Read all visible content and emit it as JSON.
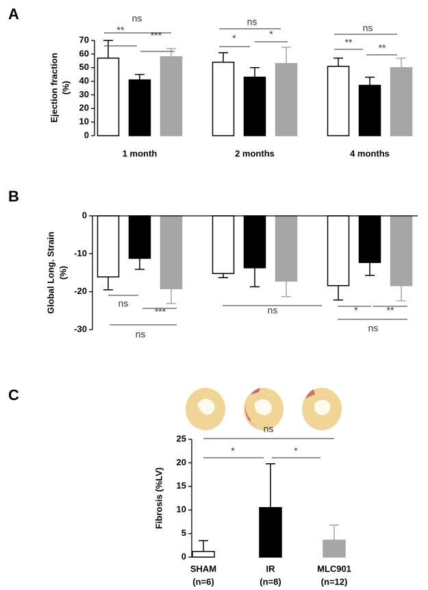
{
  "chart_data": [
    {
      "type": "bar",
      "panel_label": "A",
      "ylabel": [
        "Ejection fraction",
        "(%)"
      ],
      "categories": [
        "1 month",
        "2 months",
        "4 months"
      ],
      "series": [
        {
          "color": "#ffffff",
          "values": [
            57,
            54,
            51
          ],
          "errors": [
            13,
            7,
            6
          ]
        },
        {
          "color": "#000000",
          "values": [
            41,
            43,
            37
          ],
          "errors": [
            4,
            7,
            6
          ]
        },
        {
          "color": "#a6a6a6",
          "values": [
            58,
            53,
            50
          ],
          "errors": [
            6,
            12,
            7
          ]
        }
      ],
      "ylim": [
        0,
        70
      ],
      "yticks": [
        0,
        10,
        20,
        30,
        40,
        50,
        60,
        70
      ],
      "annotations": [
        "ns",
        "**",
        "***",
        "ns",
        "*",
        "*",
        "ns",
        "**",
        "**"
      ]
    },
    {
      "type": "bar",
      "panel_label": "B",
      "ylabel": [
        "Global Long. Strain",
        "(%)"
      ],
      "categories": [
        null,
        null,
        null
      ],
      "series": [
        {
          "color": "#ffffff",
          "values": [
            -16.1,
            -15.2,
            -18.4
          ],
          "errors": [
            3.4,
            1.1,
            3.8
          ]
        },
        {
          "color": "#000000",
          "values": [
            -11.2,
            -13.7,
            -12.3
          ],
          "errors": [
            2.9,
            5,
            3.4
          ]
        },
        {
          "color": "#a6a6a6",
          "values": [
            -19.2,
            -17.2,
            -18.4
          ],
          "errors": [
            3.9,
            4.1,
            4
          ]
        }
      ],
      "ylim": [
        -30,
        0
      ],
      "yticks": [
        -30,
        -20,
        -10,
        0
      ],
      "annotations": [
        "ns",
        "***",
        "ns",
        "ns",
        "*",
        "**",
        "ns"
      ]
    },
    {
      "type": "bar",
      "panel_label": "C",
      "ylabel": [
        "Fibrosis (%LV)"
      ],
      "categories": [
        "SHAM",
        "IR",
        "MLC901"
      ],
      "category_notes": [
        "(n=6)",
        "(n=8)",
        "(n=12)"
      ],
      "values": [
        1.2,
        10.5,
        3.6
      ],
      "errors": [
        2.3,
        9.3,
        3.2
      ],
      "colors": [
        "#ffffff",
        "#000000",
        "#a6a6a6"
      ],
      "ylim": [
        0,
        25
      ],
      "yticks": [
        0,
        5,
        10,
        15,
        20,
        25
      ],
      "annotations": [
        "ns",
        "*",
        "*"
      ]
    }
  ]
}
